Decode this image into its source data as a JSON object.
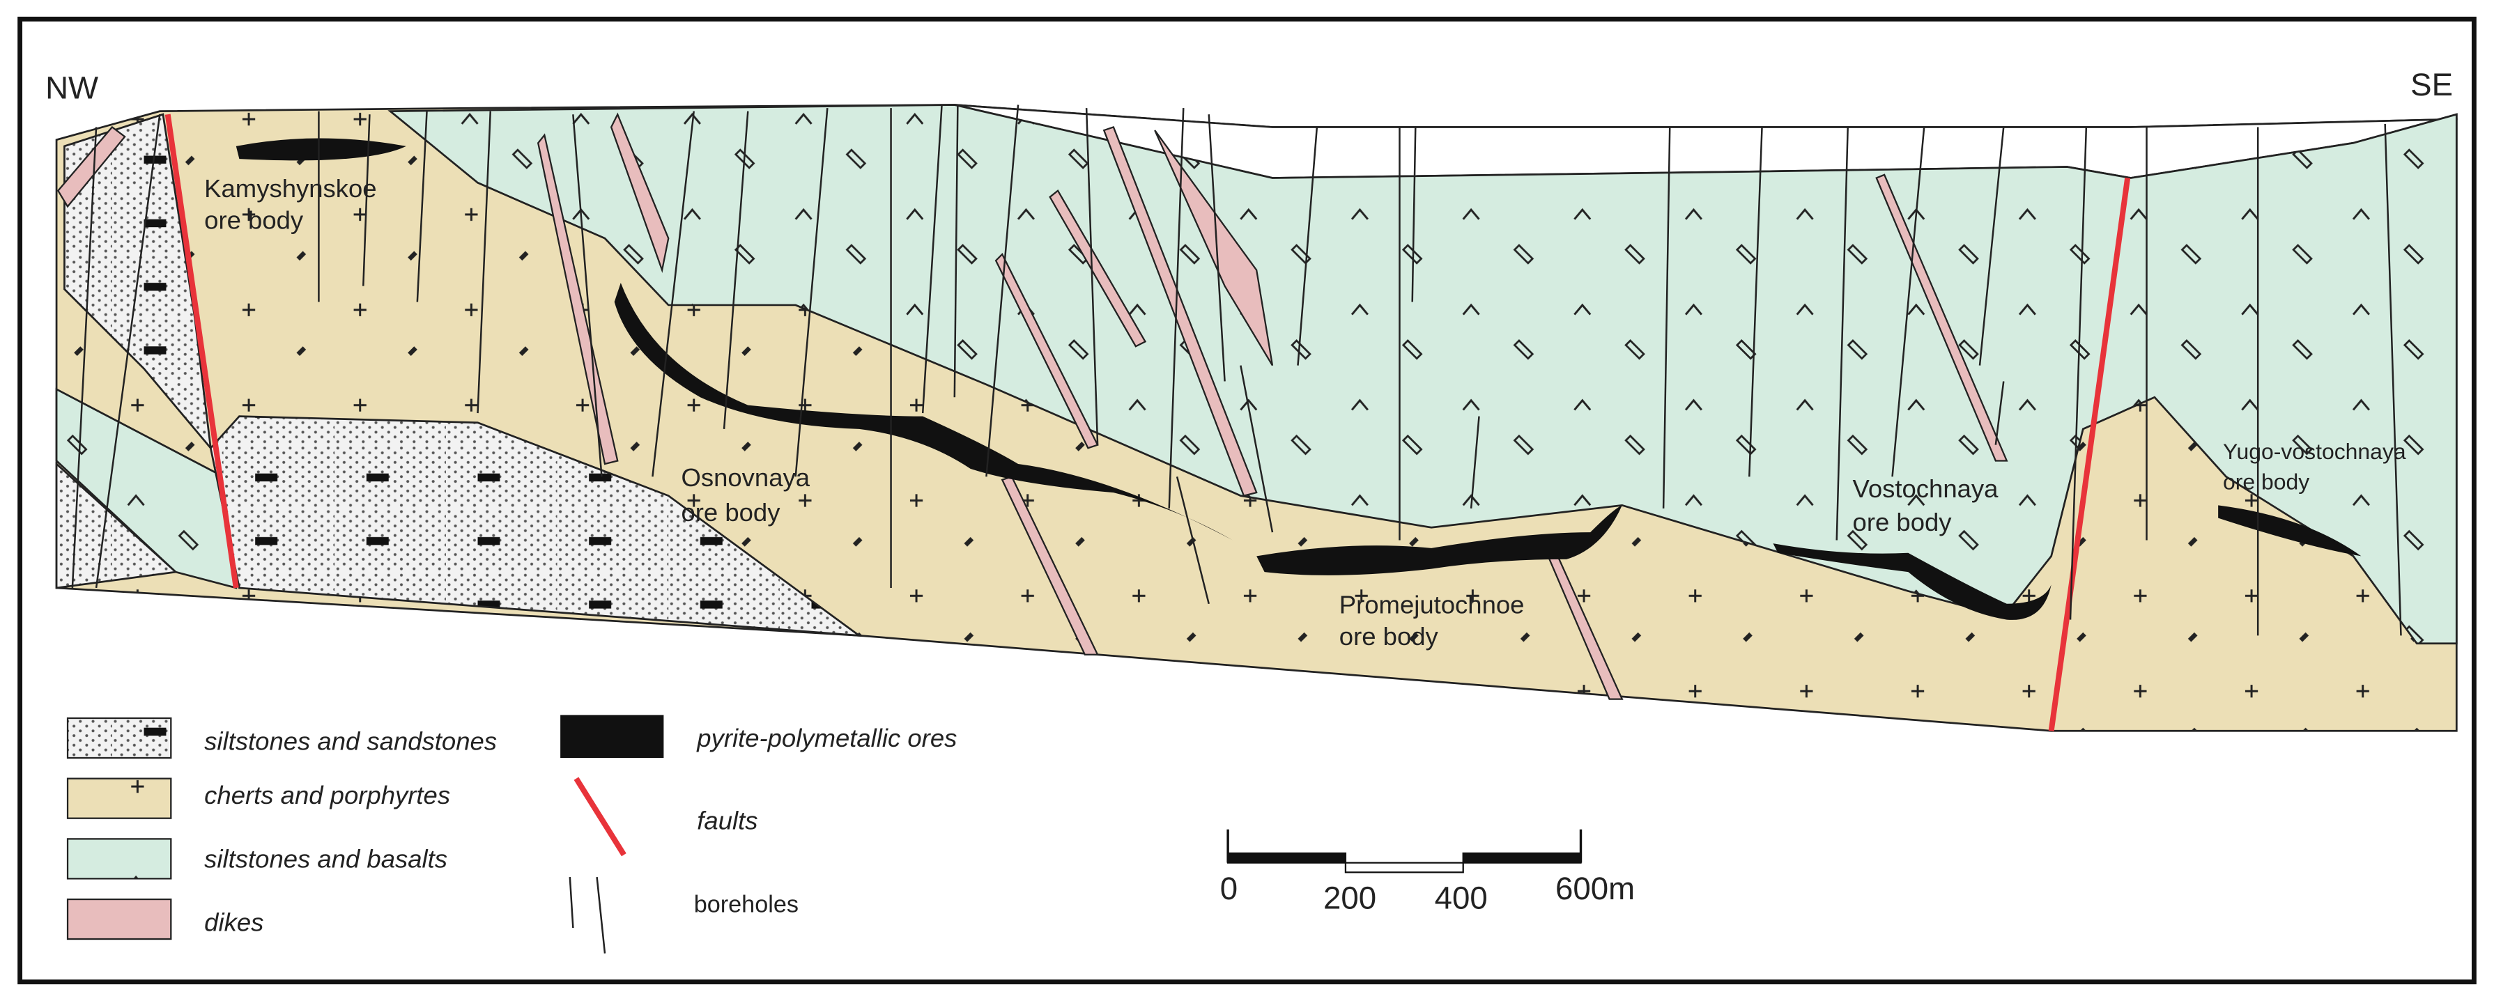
{
  "directions": {
    "left": "NW",
    "right": "SE"
  },
  "ore_bodies": [
    {
      "lines": [
        "Kamyshynskoe",
        "ore body"
      ]
    },
    {
      "lines": [
        "Osnovnaya",
        "ore body"
      ]
    },
    {
      "lines": [
        "Promejutochnoe",
        "ore body"
      ]
    },
    {
      "lines": [
        "Vostochnaya",
        "ore body"
      ]
    },
    {
      "lines": [
        "Yugo-vostochnaya",
        "ore body"
      ]
    }
  ],
  "legend": [
    {
      "label": "siltstones and sandstones"
    },
    {
      "label": "cherts and porphyrtes"
    },
    {
      "label": "siltstones and  basalts"
    },
    {
      "label": "dikes"
    },
    {
      "label": "pyrite-polymetallic ores"
    },
    {
      "label": "faults"
    },
    {
      "label": "boreholes"
    }
  ],
  "scale_bar": {
    "labels": [
      "0",
      "200",
      "400",
      "600m"
    ]
  }
}
